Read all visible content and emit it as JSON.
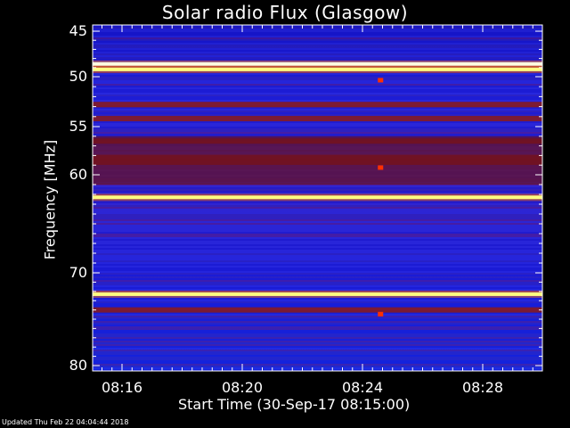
{
  "chart_data": {
    "type": "heatmap",
    "title": "Solar radio Flux (Glasgow)",
    "xlabel": "Start Time (30-Sep-17 08:15:00)",
    "ylabel": "Frequency [MHz]",
    "x_ticks": [
      "08:16",
      "08:20",
      "08:24",
      "08:28"
    ],
    "x_tick_minutes": [
      1,
      5,
      9,
      13
    ],
    "x_range_minutes": [
      0,
      15
    ],
    "y_ticks": [
      45,
      50,
      55,
      60,
      70,
      80
    ],
    "y_range": [
      44.5,
      81
    ],
    "y_axis_nonlinear": true,
    "colors": {
      "background": "#000000",
      "low": "#0000ff",
      "mid": "#8a1a1a",
      "high": "#ffff80"
    },
    "bright_bands_mhz": [
      48.6,
      49.2,
      62.3,
      72.3
    ],
    "dark_red_bands_mhz": [
      52.8,
      54.2,
      56.5,
      58.2,
      58.7,
      74.0
    ],
    "spots": [
      {
        "time_min": 9.6,
        "freq_mhz": 50.4
      },
      {
        "time_min": 9.6,
        "freq_mhz": 59.3
      },
      {
        "time_min": 9.6,
        "freq_mhz": 74.5
      }
    ]
  },
  "footer": "Updated Thu Feb 22 04:04:44 2018"
}
